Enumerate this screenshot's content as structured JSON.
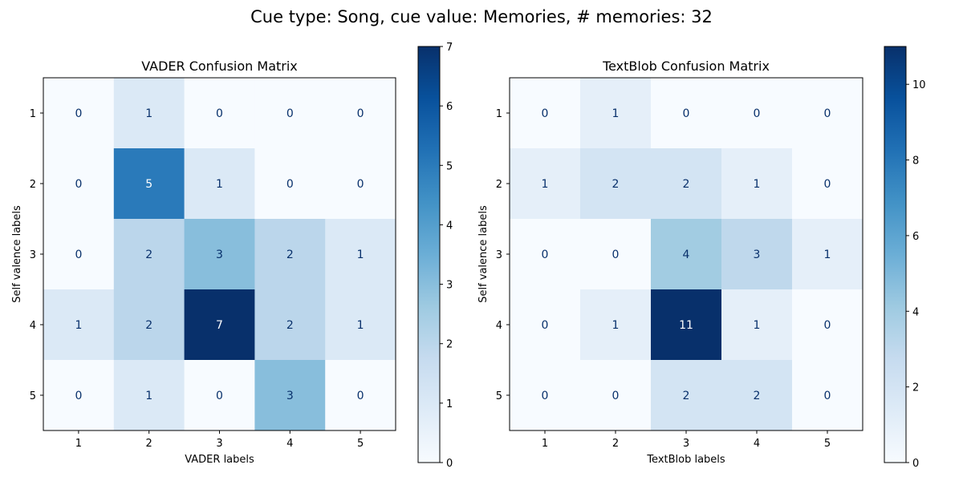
{
  "figure_title": "Cue type: Song, cue value: Memories, # memories: 32",
  "chart_data": [
    {
      "type": "heatmap",
      "title": "VADER Confusion Matrix",
      "xlabel": "VADER labels",
      "ylabel": "Self valence labels",
      "x_categories": [
        "1",
        "2",
        "3",
        "4",
        "5"
      ],
      "y_categories": [
        "1",
        "2",
        "3",
        "4",
        "5"
      ],
      "matrix": [
        [
          0,
          1,
          0,
          0,
          0
        ],
        [
          0,
          5,
          1,
          0,
          0
        ],
        [
          0,
          2,
          3,
          2,
          1
        ],
        [
          1,
          2,
          7,
          2,
          1
        ],
        [
          0,
          1,
          0,
          3,
          0
        ]
      ],
      "colormap": "Blues",
      "colorbar": {
        "min": 0,
        "max": 7,
        "ticks": [
          0,
          1,
          2,
          3,
          4,
          5,
          6,
          7
        ]
      }
    },
    {
      "type": "heatmap",
      "title": "TextBlob Confusion Matrix",
      "xlabel": "TextBlob labels",
      "ylabel": "Self valence labels",
      "x_categories": [
        "1",
        "2",
        "3",
        "4",
        "5"
      ],
      "y_categories": [
        "1",
        "2",
        "3",
        "4",
        "5"
      ],
      "matrix": [
        [
          0,
          1,
          0,
          0,
          0
        ],
        [
          1,
          2,
          2,
          1,
          0
        ],
        [
          0,
          0,
          4,
          3,
          1
        ],
        [
          0,
          1,
          11,
          1,
          0
        ],
        [
          0,
          0,
          2,
          2,
          0
        ]
      ],
      "colormap": "Blues",
      "colorbar": {
        "min": 0,
        "max": 11,
        "ticks": [
          0,
          2,
          4,
          6,
          8,
          10
        ]
      }
    }
  ]
}
